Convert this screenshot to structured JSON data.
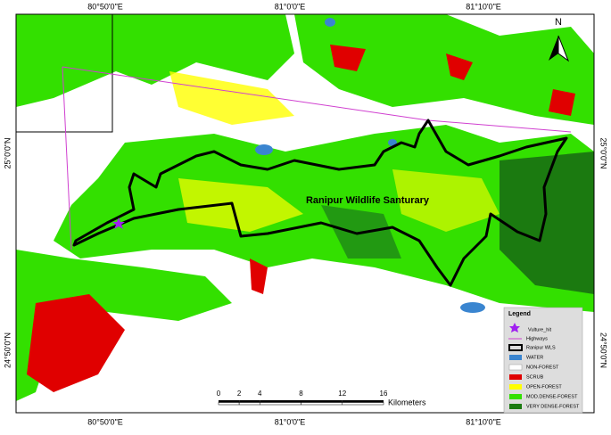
{
  "coordinates": {
    "top": [
      "80°50'0\"E",
      "81°0'0\"E",
      "81°10'0\"E"
    ],
    "bottom": [
      "80°50'0\"E",
      "81°0'0\"E",
      "81°10'0\"E"
    ],
    "left": [
      "25°0'0\"N",
      "24°50'0\"N"
    ],
    "right": [
      "25°0'0\"N",
      "24°50'0\"N"
    ]
  },
  "north_label": "N",
  "map_label": "Ranipur Wildlife Santurary",
  "legend": {
    "title": "Legend",
    "items": [
      "Vulture_hit",
      "Highways",
      "Ranipur WLS",
      "WATER",
      "NON-FOREST",
      "SCRUB",
      "OPEN-FOREST",
      "MOD.DENSE-FOREST",
      "VERY DENSE-FOREST"
    ]
  },
  "scale_bar": {
    "ticks": [
      0,
      2,
      4,
      8,
      12,
      16
    ],
    "unit": "Kilometers"
  }
}
